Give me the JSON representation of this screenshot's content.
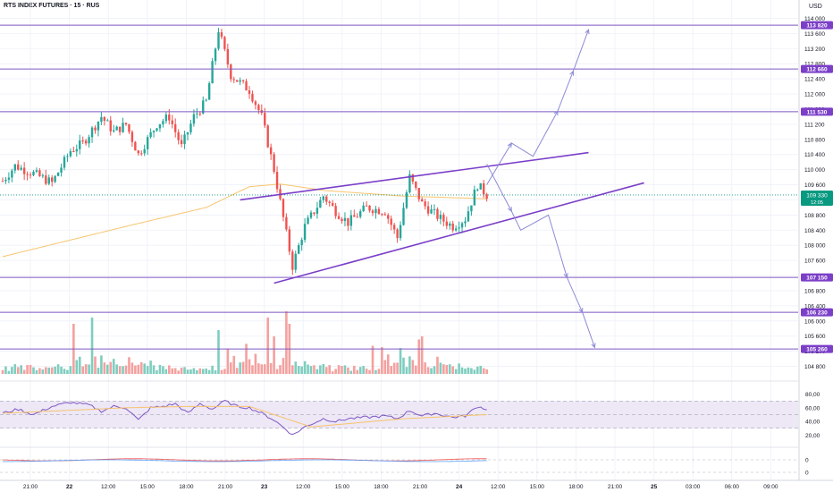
{
  "header": {
    "title": "RTS INDEX FUTURES · 15 · RUS",
    "currency": "USD"
  },
  "colors": {
    "bull": "#26a69a",
    "bear": "#ef5350",
    "vol_bull": "#7fcdbf",
    "vol_bear": "#f4a19f",
    "level": "#7e57c2",
    "pattern": "#7b3fc8",
    "projection": "#8c8bd6",
    "ma": "#f7c46c",
    "rsi": "#7e57c2",
    "rsi_ma": "#f7c46c",
    "rsi_band": "#ede7f6",
    "current": "#089981",
    "axis_text": "#131722"
  },
  "chart_data": [
    {
      "type": "candlestick",
      "name": "price",
      "ylim": [
        104600,
        114200
      ],
      "y_ticks": [
        "114 000",
        "113 600",
        "113 200",
        "112 800",
        "112 400",
        "112 000",
        "111 600",
        "111 200",
        "110 800",
        "110 400",
        "110 000",
        "109 600",
        "109 200",
        "108 800",
        "108 400",
        "108 000",
        "107 600",
        "107 200",
        "106 800",
        "106 400",
        "106 000",
        "105 600",
        "105 200",
        "104 800"
      ],
      "x_ticks": [
        "21:00",
        "22",
        "12:00",
        "15:00",
        "18:00",
        "21:00",
        "23",
        "12:00",
        "15:00",
        "18:00",
        "21:00",
        "24",
        "12:00",
        "15:00",
        "18:00",
        "21:00",
        "25",
        "03:00",
        "06:00",
        "09:00"
      ],
      "key_points": [
        {
          "i": 0,
          "v": 109700
        },
        {
          "i": 4,
          "v": 110100
        },
        {
          "i": 10,
          "v": 109900
        },
        {
          "i": 16,
          "v": 109650
        },
        {
          "i": 22,
          "v": 110500
        },
        {
          "i": 26,
          "v": 110700
        },
        {
          "i": 32,
          "v": 111400
        },
        {
          "i": 36,
          "v": 111000
        },
        {
          "i": 40,
          "v": 111200
        },
        {
          "i": 44,
          "v": 110400
        },
        {
          "i": 50,
          "v": 111200
        },
        {
          "i": 54,
          "v": 111400
        },
        {
          "i": 58,
          "v": 110600
        },
        {
          "i": 62,
          "v": 111400
        },
        {
          "i": 66,
          "v": 111800
        },
        {
          "i": 70,
          "v": 113700
        },
        {
          "i": 74,
          "v": 112500
        },
        {
          "i": 80,
          "v": 112100
        },
        {
          "i": 84,
          "v": 111400
        },
        {
          "i": 88,
          "v": 110000
        },
        {
          "i": 92,
          "v": 108300
        },
        {
          "i": 94,
          "v": 107450
        },
        {
          "i": 98,
          "v": 108500
        },
        {
          "i": 104,
          "v": 109300
        },
        {
          "i": 108,
          "v": 108900
        },
        {
          "i": 112,
          "v": 108600
        },
        {
          "i": 118,
          "v": 109000
        },
        {
          "i": 124,
          "v": 108900
        },
        {
          "i": 128,
          "v": 108200
        },
        {
          "i": 132,
          "v": 109800
        },
        {
          "i": 136,
          "v": 109100
        },
        {
          "i": 142,
          "v": 108700
        },
        {
          "i": 146,
          "v": 108500
        },
        {
          "i": 150,
          "v": 108700
        },
        {
          "i": 154,
          "v": 109600
        },
        {
          "i": 157,
          "v": 109330
        }
      ],
      "ma_values": [
        {
          "i": 0,
          "v": 107700
        },
        {
          "i": 40,
          "v": 108500
        },
        {
          "i": 66,
          "v": 109000
        },
        {
          "i": 80,
          "v": 109550
        },
        {
          "i": 90,
          "v": 109620
        },
        {
          "i": 104,
          "v": 109450
        },
        {
          "i": 130,
          "v": 109300
        },
        {
          "i": 157,
          "v": 109230
        }
      ],
      "levels": [
        {
          "value": 113820,
          "label": "113 820"
        },
        {
          "value": 112660,
          "label": "112 660"
        },
        {
          "value": 111530,
          "label": "111 530"
        },
        {
          "value": 107150,
          "label": "107 150"
        },
        {
          "value": 106230,
          "label": "106 230"
        },
        {
          "value": 105260,
          "label": "105 260"
        }
      ],
      "current": {
        "value": 109330,
        "label": "109 330",
        "timer": "12:05"
      },
      "pattern_lines": [
        {
          "from": {
            "i": 77,
            "v": 109200
          },
          "to": {
            "i": 190,
            "v": 110450
          }
        },
        {
          "from": {
            "i": 88,
            "v": 107000
          },
          "to": {
            "i": 208,
            "v": 109650
          }
        }
      ],
      "projections": [
        [
          {
            "i": 157,
            "v": 109600
          },
          {
            "i": 165,
            "v": 110700
          },
          {
            "i": 172,
            "v": 110350
          },
          {
            "i": 180,
            "v": 111550
          },
          {
            "i": 185,
            "v": 112600
          },
          {
            "i": 190,
            "v": 113700
          }
        ],
        [
          {
            "i": 157,
            "v": 110150
          },
          {
            "i": 165,
            "v": 108900
          },
          {
            "i": 168,
            "v": 108400
          },
          {
            "i": 177,
            "v": 108800
          },
          {
            "i": 183,
            "v": 107150
          },
          {
            "i": 188,
            "v": 106230
          },
          {
            "i": 192,
            "v": 105300
          }
        ]
      ]
    },
    {
      "type": "bar",
      "name": "volume",
      "pattern": [
        0.12,
        0.18,
        0.1,
        0.15,
        0.22,
        0.12,
        0.14,
        0.09,
        0.16,
        0.2,
        0.11,
        0.13,
        0.18,
        0.1,
        0.15,
        0.09,
        0.13,
        0.12,
        0.17,
        0.1,
        0.14,
        0.11,
        0.16,
        0.8,
        0.35,
        0.55,
        0.2,
        0.3,
        0.28,
        0.9,
        0.45,
        0.22,
        0.6,
        0.35,
        0.18,
        0.25,
        0.4,
        0.3,
        0.22,
        0.15,
        0.2,
        0.45,
        0.3,
        0.25,
        0.18,
        0.28,
        0.22,
        0.15,
        0.35,
        0.2
      ],
      "spikes": [
        {
          "i": 23,
          "h": 0.8
        },
        {
          "i": 29,
          "h": 0.9
        },
        {
          "i": 70,
          "h": 0.7
        },
        {
          "i": 86,
          "h": 0.9
        },
        {
          "i": 92,
          "h": 1.0
        },
        {
          "i": 93,
          "h": 0.8
        },
        {
          "i": 88,
          "h": 0.6
        },
        {
          "i": 120,
          "h": 0.45
        },
        {
          "i": 135,
          "h": 0.55
        },
        {
          "i": 136,
          "h": 0.6
        }
      ]
    },
    {
      "type": "line",
      "name": "rsi",
      "ylim": [
        10,
        90
      ],
      "y_ticks": [
        "80,00",
        "60,00",
        "40,00",
        "20,00"
      ],
      "band": [
        30,
        70
      ],
      "mid": 50,
      "key_points": [
        {
          "i": 0,
          "v": 52
        },
        {
          "i": 5,
          "v": 58
        },
        {
          "i": 10,
          "v": 50
        },
        {
          "i": 16,
          "v": 62
        },
        {
          "i": 22,
          "v": 68
        },
        {
          "i": 28,
          "v": 64
        },
        {
          "i": 32,
          "v": 55
        },
        {
          "i": 36,
          "v": 62
        },
        {
          "i": 40,
          "v": 60
        },
        {
          "i": 44,
          "v": 42
        },
        {
          "i": 48,
          "v": 60
        },
        {
          "i": 52,
          "v": 62
        },
        {
          "i": 56,
          "v": 66
        },
        {
          "i": 60,
          "v": 52
        },
        {
          "i": 64,
          "v": 66
        },
        {
          "i": 68,
          "v": 58
        },
        {
          "i": 72,
          "v": 70
        },
        {
          "i": 76,
          "v": 62
        },
        {
          "i": 80,
          "v": 60
        },
        {
          "i": 84,
          "v": 52
        },
        {
          "i": 88,
          "v": 42
        },
        {
          "i": 92,
          "v": 28
        },
        {
          "i": 94,
          "v": 20
        },
        {
          "i": 98,
          "v": 32
        },
        {
          "i": 104,
          "v": 44
        },
        {
          "i": 108,
          "v": 40
        },
        {
          "i": 112,
          "v": 44
        },
        {
          "i": 118,
          "v": 46
        },
        {
          "i": 124,
          "v": 48
        },
        {
          "i": 128,
          "v": 44
        },
        {
          "i": 132,
          "v": 56
        },
        {
          "i": 136,
          "v": 48
        },
        {
          "i": 140,
          "v": 52
        },
        {
          "i": 146,
          "v": 46
        },
        {
          "i": 150,
          "v": 48
        },
        {
          "i": 154,
          "v": 62
        },
        {
          "i": 157,
          "v": 58
        }
      ],
      "ma_points": [
        {
          "i": 0,
          "v": 52
        },
        {
          "i": 20,
          "v": 56
        },
        {
          "i": 40,
          "v": 60
        },
        {
          "i": 60,
          "v": 62
        },
        {
          "i": 80,
          "v": 62
        },
        {
          "i": 92,
          "v": 44
        },
        {
          "i": 100,
          "v": 32
        },
        {
          "i": 110,
          "v": 36
        },
        {
          "i": 130,
          "v": 44
        },
        {
          "i": 157,
          "v": 50
        }
      ]
    },
    {
      "type": "line",
      "name": "oscillator",
      "y_ticks": [
        "0",
        "0"
      ]
    }
  ]
}
